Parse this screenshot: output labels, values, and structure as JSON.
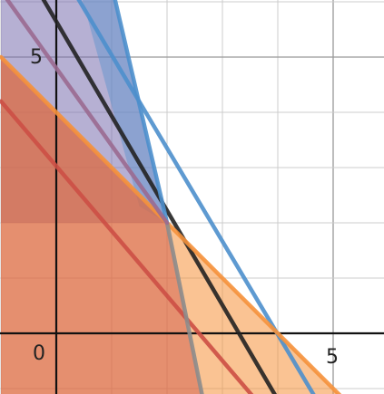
{
  "chart_data": {
    "type": "line",
    "title": "",
    "xlabel": "",
    "ylabel": "",
    "xlim": [
      -1,
      6
    ],
    "ylim": [
      -1.1,
      6
    ],
    "grid": true,
    "tick_labels": {
      "x": [
        {
          "value": 5,
          "text": "5"
        }
      ],
      "y": [
        {
          "value": 5,
          "text": "5"
        }
      ],
      "origin": "0"
    },
    "lines": [
      {
        "name": "black-line",
        "color": "#222222",
        "points": [
          [
            -0.5,
            6.5
          ],
          [
            4,
            -1.2
          ]
        ]
      },
      {
        "name": "blue-steep-line",
        "color": "#4d8fcc",
        "points": [
          [
            1,
            6.3
          ],
          [
            2,
            2
          ]
        ]
      },
      {
        "name": "blue-diagonal-line",
        "color": "#4d8fcc",
        "points": [
          [
            0.25,
            6.3
          ],
          [
            4.7,
            -1.2
          ]
        ]
      },
      {
        "name": "orange-line",
        "color": "#f5913b",
        "points": [
          [
            -1,
            5
          ],
          [
            5.2,
            -1.2
          ]
        ]
      },
      {
        "name": "red-line",
        "color": "#cc4f45",
        "points": [
          [
            -1,
            4.2
          ],
          [
            3.6,
            -1.2
          ]
        ]
      },
      {
        "name": "gray-line",
        "color": "#8c8c8c",
        "points": [
          [
            2,
            2
          ],
          [
            2.65,
            -1.2
          ]
        ]
      },
      {
        "name": "purple-line",
        "color": "#9a6a90",
        "points": [
          [
            -1,
            6.2
          ],
          [
            2,
            2
          ]
        ]
      }
    ],
    "regions": [
      {
        "name": "purple-region",
        "color": "#7a6fae",
        "opacity": 0.55,
        "points": [
          [
            -1,
            6.3
          ],
          [
            1,
            6.3
          ],
          [
            2,
            2
          ],
          [
            -1,
            2
          ]
        ]
      },
      {
        "name": "blue-region",
        "color": "#4d8fcc",
        "opacity": 0.4,
        "points": [
          [
            0.4,
            6.3
          ],
          [
            1,
            6.3
          ],
          [
            2,
            2
          ],
          [
            1.5,
            2.3
          ]
        ]
      },
      {
        "name": "orange-region",
        "color": "#f5913b",
        "opacity": 0.55,
        "points": [
          [
            -1,
            5
          ],
          [
            2,
            2
          ],
          [
            5.2,
            -1.2
          ],
          [
            -1,
            -1.2
          ]
        ]
      },
      {
        "name": "red-region",
        "color": "#cc4f45",
        "opacity": 0.45,
        "points": [
          [
            -1,
            5
          ],
          [
            2,
            2
          ],
          [
            2.65,
            -1.2
          ],
          [
            -1,
            -1.2
          ]
        ]
      }
    ]
  }
}
